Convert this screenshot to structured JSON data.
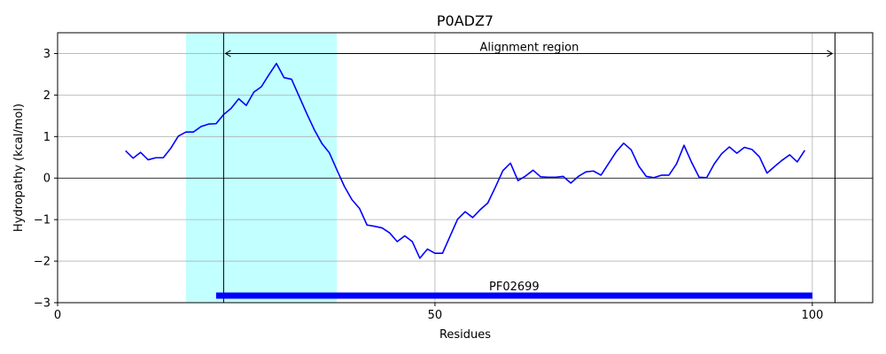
{
  "chart_data": {
    "type": "line",
    "title": "P0ADZ7",
    "xlabel": "Residues",
    "ylabel": "Hydropathy (kcal/mol)",
    "xlim": [
      0,
      108
    ],
    "ylim": [
      -3,
      3.5
    ],
    "xticks": [
      0,
      50,
      100
    ],
    "yticks": [
      -3,
      -2,
      -1,
      0,
      1,
      2,
      3
    ],
    "ytick_labels": [
      "−3",
      "−2",
      "−1",
      "0",
      "1",
      "2",
      "3"
    ],
    "grid": true,
    "zero_line": true,
    "shaded_region": {
      "x_start": 17,
      "x_end": 37,
      "color": "#c2ffff"
    },
    "alignment_region": {
      "label": "Alignment region",
      "x_start": 22,
      "x_end": 103,
      "y": 3
    },
    "domain_bar": {
      "label": "PF02699",
      "x_start": 21,
      "x_end": 100,
      "y": -2.83,
      "color": "#0000ff"
    },
    "series": [
      {
        "color": "#0000ff",
        "x": [
          9,
          10,
          11,
          12,
          13,
          14,
          15,
          16,
          17,
          18,
          19,
          20,
          21,
          22,
          23,
          24,
          25,
          26,
          27,
          28,
          29,
          30,
          31,
          32,
          33,
          34,
          35,
          36,
          37,
          38,
          39,
          40,
          41,
          42,
          43,
          44,
          45,
          46,
          47,
          48,
          49,
          50,
          51,
          52,
          53,
          54,
          55,
          56,
          57,
          58,
          59,
          60,
          61,
          62,
          63,
          64,
          65,
          66,
          67,
          68,
          69,
          70,
          71,
          72,
          73,
          74,
          75,
          76,
          77,
          78,
          79,
          80,
          81,
          82,
          83,
          84,
          85,
          86,
          87,
          88,
          89,
          90,
          91,
          92,
          93,
          94,
          95,
          96,
          97,
          98,
          99
        ],
        "y": [
          0.66,
          0.48,
          0.62,
          0.44,
          0.49,
          0.49,
          0.72,
          1.01,
          1.11,
          1.11,
          1.24,
          1.3,
          1.31,
          1.53,
          1.68,
          1.91,
          1.75,
          2.07,
          2.2,
          2.49,
          2.76,
          2.42,
          2.38,
          1.97,
          1.56,
          1.17,
          0.84,
          0.61,
          0.2,
          -0.2,
          -0.52,
          -0.73,
          -1.13,
          -1.16,
          -1.2,
          -1.32,
          -1.53,
          -1.39,
          -1.53,
          -1.93,
          -1.71,
          -1.81,
          -1.81,
          -1.4,
          -0.99,
          -0.81,
          -0.95,
          -0.76,
          -0.6,
          -0.22,
          0.18,
          0.36,
          -0.06,
          0.05,
          0.19,
          0.03,
          0.02,
          0.02,
          0.04,
          -0.12,
          0.04,
          0.15,
          0.17,
          0.07,
          0.35,
          0.63,
          0.84,
          0.68,
          0.29,
          0.04,
          0.01,
          0.07,
          0.07,
          0.34,
          0.79,
          0.38,
          0.02,
          0.01,
          0.34,
          0.59,
          0.75,
          0.6,
          0.74,
          0.69,
          0.51,
          0.12,
          0.28,
          0.43,
          0.56,
          0.39,
          0.67
        ]
      }
    ]
  }
}
